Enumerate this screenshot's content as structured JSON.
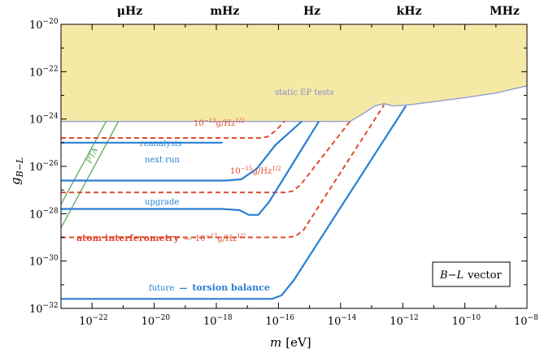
{
  "chart_data": {
    "type": "line",
    "xscale": "log",
    "yscale": "log",
    "xlim_exp": [
      -23,
      -8
    ],
    "ylim_exp": [
      -32,
      -20
    ],
    "xlabel": {
      "var": "m",
      "unit": "[eV]"
    },
    "ylabel": {
      "var": "g",
      "sub": "B−L"
    },
    "x_ticks": [
      {
        "exp": -22,
        "label": "10",
        "sup": "−22"
      },
      {
        "exp": -20,
        "label": "10",
        "sup": "−20"
      },
      {
        "exp": -18,
        "label": "10",
        "sup": "−18"
      },
      {
        "exp": -16,
        "label": "10",
        "sup": "−16"
      },
      {
        "exp": -14,
        "label": "10",
        "sup": "−14"
      },
      {
        "exp": -12,
        "label": "10",
        "sup": "−12"
      },
      {
        "exp": -10,
        "label": "10",
        "sup": "−10"
      },
      {
        "exp": -8,
        "label": "10",
        "sup": "−8"
      }
    ],
    "y_ticks": [
      {
        "exp": -20,
        "label": "10",
        "sup": "−20"
      },
      {
        "exp": -22,
        "label": "10",
        "sup": "−22"
      },
      {
        "exp": -24,
        "label": "10",
        "sup": "−24"
      },
      {
        "exp": -26,
        "label": "10",
        "sup": "−26"
      },
      {
        "exp": -28,
        "label": "10",
        "sup": "−28"
      },
      {
        "exp": -30,
        "label": "10",
        "sup": "−30"
      },
      {
        "exp": -32,
        "label": "10",
        "sup": "−32"
      }
    ],
    "top_axis": [
      {
        "label": "μHz",
        "x_exp": -21.2
      },
      {
        "label": "mHz",
        "x_exp": -18.2
      },
      {
        "label": "Hz",
        "x_exp": -15.2
      },
      {
        "label": "kHz",
        "x_exp": -12.2
      },
      {
        "label": "MHz",
        "x_exp": -9.2
      }
    ],
    "excluded_region": {
      "name": "static EP tests",
      "fill": "#f5e9a6",
      "stroke": "#8a9ad0",
      "boundary": [
        [
          -23,
          -24.1
        ],
        [
          -13.7,
          -24.1
        ],
        [
          -13.3,
          -23.8
        ],
        [
          -12.9,
          -23.45
        ],
        [
          -12.6,
          -23.35
        ],
        [
          -12.3,
          -23.45
        ],
        [
          -11.8,
          -23.4
        ],
        [
          -10,
          -23.1
        ],
        [
          -9,
          -22.9
        ],
        [
          -8,
          -22.6
        ]
      ]
    },
    "pta": {
      "name": "PTA",
      "color": "#5aaa5a",
      "lines": [
        [
          [
            -23,
            -27.6
          ],
          [
            -21.55,
            -24.1
          ]
        ],
        [
          [
            -23,
            -28.6
          ],
          [
            -21.15,
            -24.1
          ]
        ]
      ]
    },
    "torsion_balance": {
      "name": "torsion balance",
      "color": "#2a7fd4",
      "curves": [
        {
          "label": "reanalysis",
          "points": [
            [
              -23,
              -25.0
            ],
            [
              -17.8,
              -25.0
            ]
          ]
        },
        {
          "label": "next run",
          "points": [
            [
              -23,
              -26.6
            ],
            [
              -17.7,
              -26.6
            ],
            [
              -17.2,
              -26.55
            ],
            [
              -16.7,
              -26.1
            ],
            [
              -16.1,
              -25.1
            ],
            [
              -15.25,
              -24.1
            ]
          ]
        },
        {
          "label": "upgrade",
          "points": [
            [
              -23,
              -27.8
            ],
            [
              -17.8,
              -27.8
            ],
            [
              -17.25,
              -27.85
            ],
            [
              -16.95,
              -28.05
            ],
            [
              -16.65,
              -28.05
            ],
            [
              -16.3,
              -27.5
            ],
            [
              -14.7,
              -24.1
            ]
          ]
        },
        {
          "label": "future",
          "points": [
            [
              -23,
              -31.6
            ],
            [
              -16.2,
              -31.6
            ],
            [
              -15.9,
              -31.45
            ],
            [
              -15.5,
              -30.8
            ],
            [
              -11.9,
              -23.45
            ]
          ]
        }
      ]
    },
    "atom_interferometry": {
      "name": "atom interferometry",
      "color": "#e04b32",
      "curves": [
        {
          "label": "10^{-13}g/Hz^{1/2}",
          "points": [
            [
              -23,
              -24.8
            ],
            [
              -16.6,
              -24.8
            ],
            [
              -16.35,
              -24.75
            ],
            [
              -16.1,
              -24.5
            ],
            [
              -15.8,
              -24.1
            ]
          ]
        },
        {
          "label": "10^{-15}g/Hz^{1/2}",
          "points": [
            [
              -23,
              -27.1
            ],
            [
              -15.8,
              -27.1
            ],
            [
              -15.55,
              -27.05
            ],
            [
              -15.3,
              -26.8
            ],
            [
              -13.7,
              -24.1
            ]
          ]
        },
        {
          "label": "10^{-17}g/Hz^{1/2}",
          "points": [
            [
              -23,
              -29.0
            ],
            [
              -15.7,
              -29.0
            ],
            [
              -15.45,
              -28.95
            ],
            [
              -15.2,
              -28.7
            ],
            [
              -12.6,
              -23.4
            ]
          ]
        }
      ]
    },
    "labels": {
      "static": "static EP tests",
      "pta": "PTA",
      "reanalysis": "reanalysis",
      "next_run": "next run",
      "upgrade": "upgrade",
      "future": "future",
      "dash": "—",
      "torsion": "torsion balance",
      "atom": "atom interferometry",
      "ai13_base": "10",
      "ai13_sup": "−13",
      "ai13_unit": "g/Hz",
      "ai13_unit_sup": "1/2",
      "ai15_base": "10",
      "ai15_sup": "−15",
      "ai15_unit": "g/Hz",
      "ai15_unit_sup": "1/2",
      "ai17_base": "10",
      "ai17_sup": "−17",
      "ai17_unit": "g/Hz",
      "ai17_unit_sup": "1/2",
      "legend_bl": "B−L",
      "legend_vec": "vector"
    }
  }
}
